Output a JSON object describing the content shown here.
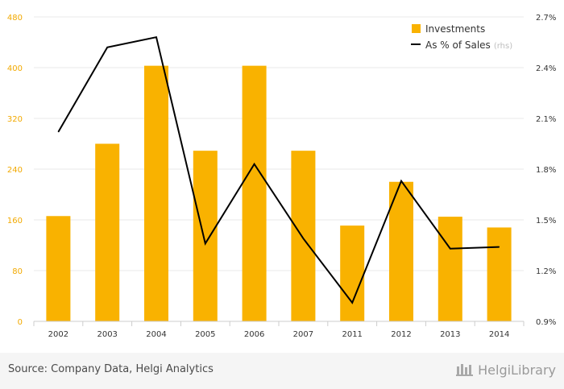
{
  "chart_data": {
    "type": "bar",
    "categories": [
      "2002",
      "2003",
      "2004",
      "2005",
      "2006",
      "2007",
      "2011",
      "2012",
      "2013",
      "2014"
    ],
    "series": [
      {
        "name": "Investments",
        "type": "bar",
        "axis": "left",
        "color": "#f9b200",
        "values": [
          166,
          280,
          403,
          269,
          403,
          269,
          151,
          220,
          165,
          148
        ]
      },
      {
        "name": "As % of Sales",
        "type": "line",
        "axis": "right",
        "color": "#000000",
        "values": [
          2.02,
          2.52,
          2.58,
          1.36,
          1.83,
          1.39,
          1.01,
          1.73,
          1.33,
          1.34
        ]
      }
    ],
    "left_axis": {
      "ylim": [
        0,
        480
      ],
      "ticks": [
        "0",
        "80",
        "160",
        "240",
        "320",
        "400",
        "480"
      ],
      "tick_color": "#f2a900"
    },
    "right_axis": {
      "ylim": [
        0.9,
        2.7
      ],
      "ticks": [
        "0.9%",
        "1.2%",
        "1.5%",
        "1.8%",
        "2.1%",
        "2.4%",
        "2.7%"
      ]
    },
    "legend": {
      "position": "top-right",
      "items": [
        {
          "label": "Investments",
          "marker": "square"
        },
        {
          "label": "As % of Sales",
          "marker": "line",
          "suffix": "(rhs)"
        }
      ]
    },
    "grid": true
  },
  "footer": {
    "source": "Source: Company Data, Helgi Analytics",
    "brand": "HelgiLibrary"
  }
}
